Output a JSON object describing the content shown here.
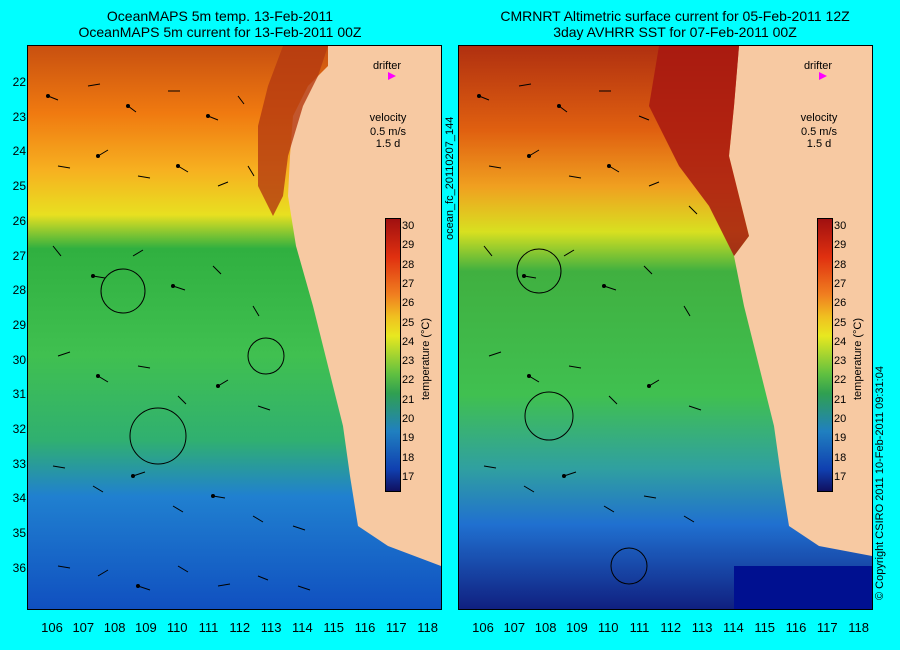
{
  "left_panel": {
    "title_line1": "OceanMAPS 5m temp. 13-Feb-2011",
    "title_line2": "OceanMAPS 5m current for 13-Feb-2011 00Z"
  },
  "right_panel": {
    "title_line1": "CMRNRT Altimetric surface current for 05-Feb-2011 12Z",
    "title_line2": "3day AVHRR SST for 07-Feb-2011 00Z"
  },
  "legend": {
    "drifter_label": "drifter",
    "velocity_label": "velocity",
    "velocity_value": "0.5 m/s",
    "duration_value": "1.5 d"
  },
  "colorbar": {
    "title": "temperature (°C)",
    "ticks": [
      "30",
      "29",
      "28",
      "27",
      "26",
      "25",
      "24",
      "23",
      "22",
      "21",
      "20",
      "19",
      "18",
      "17"
    ]
  },
  "axes": {
    "lat_ticks": [
      "22",
      "23",
      "24",
      "25",
      "26",
      "27",
      "28",
      "29",
      "30",
      "31",
      "32",
      "33",
      "34",
      "35",
      "36"
    ],
    "lon_ticks": [
      "106",
      "107",
      "108",
      "109",
      "110",
      "111",
      "112",
      "113",
      "114",
      "115",
      "116",
      "117",
      "118"
    ]
  },
  "side_labels": {
    "product_id": "ocean_fc_20110207_144",
    "copyright": "© Copyright CSIRO 2011   10-Feb-2011 09:31:04"
  },
  "colors": {
    "background": "#00ffff",
    "land": "#f7c9a2",
    "drifter_marker": "#ff00ff"
  }
}
